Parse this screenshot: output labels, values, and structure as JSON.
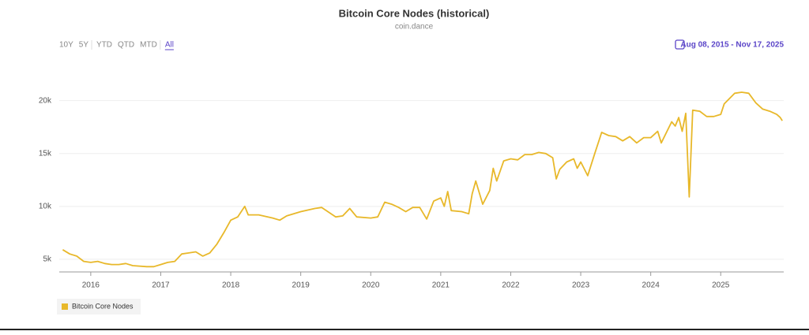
{
  "chart_data": {
    "type": "line",
    "title": "Bitcoin Core Nodes (historical)",
    "subtitle": "coin.dance",
    "range_buttons": [
      "10Y",
      "5Y",
      "YTD",
      "QTD",
      "MTD",
      "All"
    ],
    "date_range": "Aug 08, 2015 - Nov 17, 2025",
    "x": [
      2015.6,
      2015.7,
      2015.8,
      2015.9,
      2016.0,
      2016.1,
      2016.2,
      2016.3,
      2016.4,
      2016.5,
      2016.6,
      2016.8,
      2016.9,
      2017.0,
      2017.1,
      2017.2,
      2017.3,
      2017.4,
      2017.5,
      2017.6,
      2017.7,
      2017.8,
      2017.9,
      2018.0,
      2018.1,
      2018.2,
      2018.25,
      2018.4,
      2018.6,
      2018.7,
      2018.8,
      2019.0,
      2019.2,
      2019.3,
      2019.5,
      2019.6,
      2019.7,
      2019.8,
      2020.0,
      2020.1,
      2020.2,
      2020.3,
      2020.4,
      2020.5,
      2020.6,
      2020.7,
      2020.8,
      2020.9,
      2021.0,
      2021.05,
      2021.1,
      2021.15,
      2021.3,
      2021.4,
      2021.45,
      2021.5,
      2021.6,
      2021.7,
      2021.75,
      2021.8,
      2021.9,
      2022.0,
      2022.1,
      2022.2,
      2022.3,
      2022.4,
      2022.5,
      2022.6,
      2022.65,
      2022.7,
      2022.8,
      2022.9,
      2022.95,
      2023.0,
      2023.1,
      2023.2,
      2023.3,
      2023.4,
      2023.5,
      2023.6,
      2023.7,
      2023.8,
      2023.9,
      2024.0,
      2024.1,
      2024.15,
      2024.3,
      2024.35,
      2024.4,
      2024.45,
      2024.5,
      2024.55,
      2024.6,
      2024.7,
      2024.8,
      2024.9,
      2025.0,
      2025.05,
      2025.2,
      2025.3,
      2025.4,
      2025.5,
      2025.6,
      2025.7,
      2025.8,
      2025.85,
      2025.88
    ],
    "series": [
      {
        "name": "Bitcoin Core Nodes",
        "color": "#e8b82a",
        "values": [
          5900,
          5500,
          5300,
          4800,
          4700,
          4800,
          4600,
          4500,
          4500,
          4600,
          4400,
          4300,
          4300,
          4500,
          4700,
          4800,
          5500,
          5600,
          5700,
          5300,
          5600,
          6400,
          7500,
          8700,
          9000,
          10000,
          9200,
          9200,
          8900,
          8700,
          9100,
          9500,
          9800,
          9900,
          9000,
          9100,
          9800,
          9000,
          8900,
          9000,
          10400,
          10200,
          9900,
          9500,
          9900,
          9900,
          8800,
          10500,
          10800,
          10000,
          11400,
          9600,
          9500,
          9300,
          11200,
          12400,
          10200,
          11500,
          13600,
          12400,
          14300,
          14500,
          14400,
          14900,
          14900,
          15100,
          15000,
          14600,
          12600,
          13500,
          14200,
          14500,
          13600,
          14200,
          12900,
          15000,
          17000,
          16700,
          16600,
          16200,
          16600,
          16000,
          16500,
          16500,
          17100,
          16000,
          18000,
          17600,
          18400,
          17100,
          18800,
          10900,
          19100,
          19000,
          18500,
          18500,
          18700,
          19700,
          20700,
          20800,
          20700,
          19800,
          19200,
          19000,
          18700,
          18400,
          18100
        ]
      }
    ],
    "xlim": [
      2015.55,
      2025.9
    ],
    "xticks": [
      2016,
      2017,
      2018,
      2019,
      2020,
      2021,
      2022,
      2023,
      2024,
      2025
    ],
    "ylim": [
      3800,
      24300
    ],
    "yticks": [
      {
        "value": 5000,
        "label": "5k"
      },
      {
        "value": 10000,
        "label": "10k"
      },
      {
        "value": 15000,
        "label": "15k"
      },
      {
        "value": 20000,
        "label": "20k"
      }
    ],
    "grid": true
  }
}
